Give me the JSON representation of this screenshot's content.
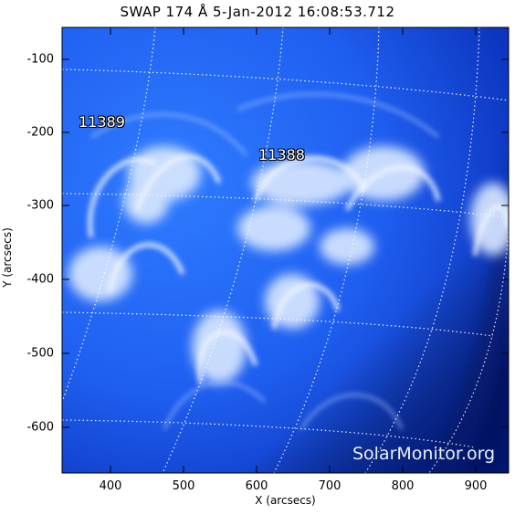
{
  "header": {
    "title": "SWAP 174 Å   5-Jan-2012 16:08:53.712"
  },
  "axes": {
    "xlabel": "X (arcsecs)",
    "ylabel": "Y (arcsecs)",
    "x_ticks": [
      "400",
      "500",
      "600",
      "700",
      "800",
      "900"
    ],
    "y_ticks": [
      "-100",
      "-200",
      "-300",
      "-400",
      "-500",
      "-600"
    ]
  },
  "regions": [
    {
      "label": "11389"
    },
    {
      "label": "11388"
    }
  ],
  "watermark": "SolarMonitor.org",
  "colors": {
    "coronal_blue": "#1f5ff0",
    "bright_loops": "#e6f0ff",
    "background_dark": "#061a8a"
  }
}
